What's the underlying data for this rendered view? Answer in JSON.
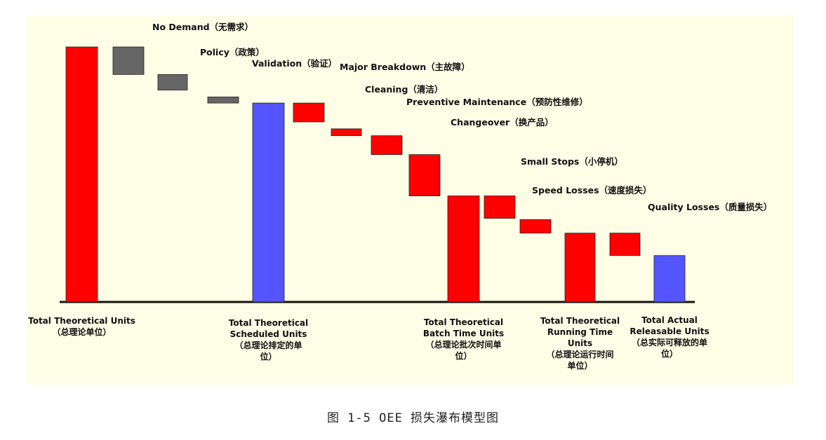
{
  "caption": "图 1-5 OEE 损失瀑布模型图",
  "colors": {
    "panel": "#fefde6",
    "total_red": "#ff0000",
    "total_blue": "#5555ff",
    "loss_gray": "#666666",
    "loss_red": "#ff0000",
    "axis": "#111111",
    "text": "#111111"
  },
  "chart_data": {
    "type": "waterfall",
    "title": "",
    "ylim": [
      0,
      100
    ],
    "segments": [
      {
        "kind": "total",
        "label_lines": [
          "Total Theoretical Units",
          "（总理论单位）"
        ],
        "value": 100,
        "color": "red"
      },
      {
        "kind": "loss",
        "label": "No Demand（无需求）",
        "from": 100,
        "to": 89.2,
        "color": "gray"
      },
      {
        "kind": "loss",
        "label": "Policy（政策）",
        "from": 89.2,
        "to": 83.1,
        "color": "gray"
      },
      {
        "kind": "loss",
        "label": "Validation（验证）",
        "from": 80.4,
        "to": 78.0,
        "color": "gray"
      },
      {
        "kind": "total",
        "label_lines": [
          "Total Theoretical",
          "Scheduled Units",
          "（总理论排定的单",
          "位）"
        ],
        "value": 78.0,
        "color": "blue"
      },
      {
        "kind": "loss",
        "label": "Major Breakdown（主故障）",
        "from": 78.0,
        "to": 70.6,
        "color": "red"
      },
      {
        "kind": "loss",
        "label": "Cleaning（清洁）",
        "from": 67.9,
        "to": 65.2,
        "color": "red"
      },
      {
        "kind": "loss",
        "label": "Preventive Maintenance（预防性维修）",
        "from": 65.2,
        "to": 57.8,
        "color": "red"
      },
      {
        "kind": "loss",
        "label": "Changeover（换产品）",
        "from": 57.8,
        "to": 41.6,
        "color": "red"
      },
      {
        "kind": "total",
        "label_lines": [
          "Total Theoretical",
          "Batch Time Units",
          "（总理论批次时间单",
          "位）"
        ],
        "value": 41.6,
        "color": "red"
      },
      {
        "kind": "loss",
        "label": "Small Stops（小停机）",
        "from": 41.6,
        "to": 32.8,
        "color": "red"
      },
      {
        "kind": "loss",
        "label": "Speed Losses（速度损失）",
        "from": 32.3,
        "to": 27.0,
        "color": "red"
      },
      {
        "kind": "total",
        "label_lines": [
          "Total Theoretical",
          "Running Time",
          "Units",
          "（总理论运行时间",
          "单位）"
        ],
        "value": 27.0,
        "color": "red"
      },
      {
        "kind": "loss",
        "label": "Quality Losses（质量损失）",
        "from": 27.0,
        "to": 18.2,
        "color": "red"
      },
      {
        "kind": "total",
        "label_lines": [
          "Total Actual",
          "Releasable Units",
          "（总实际可释放的单",
          "位）"
        ],
        "value": 18.2,
        "color": "blue"
      }
    ]
  }
}
